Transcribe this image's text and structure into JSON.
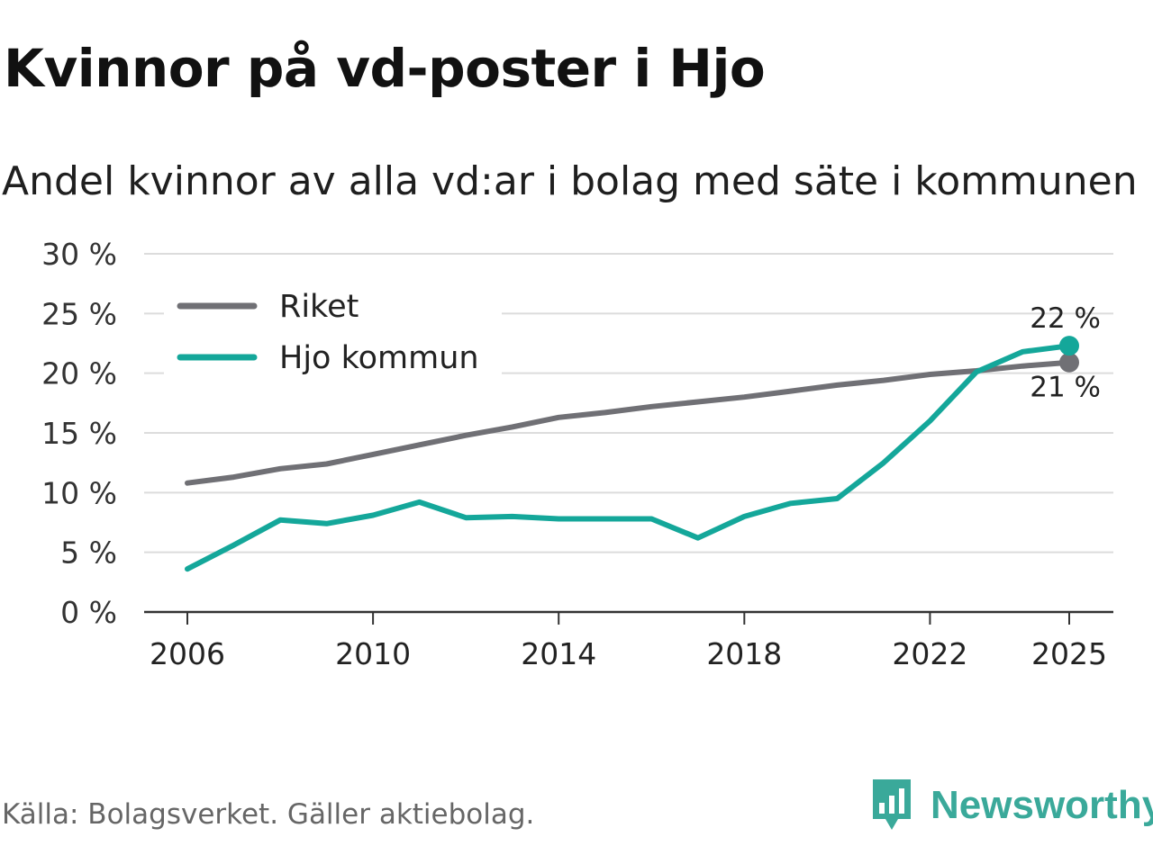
{
  "title": "Kvinnor på vd-poster i Hjo",
  "subtitle": "Andel kvinnor av alla vd:ar i bolag med säte i kommunen",
  "source": "Källa: Bolagsverket. Gäller aktiebolag.",
  "brand": "Newsworthy",
  "colors": {
    "riket": "#707075",
    "hjo": "#14a79a",
    "grid": "#dcdcdc",
    "axis": "#333333"
  },
  "chart_data": {
    "type": "line",
    "x": [
      2006,
      2007,
      2008,
      2009,
      2010,
      2011,
      2012,
      2013,
      2014,
      2015,
      2016,
      2017,
      2018,
      2019,
      2020,
      2021,
      2022,
      2023,
      2024,
      2025
    ],
    "series": [
      {
        "name": "Riket",
        "values": [
          10.8,
          11.3,
          12.0,
          12.4,
          13.2,
          14.0,
          14.8,
          15.5,
          16.3,
          16.7,
          17.2,
          17.6,
          18.0,
          18.5,
          19.0,
          19.4,
          19.9,
          20.2,
          20.6,
          20.9
        ],
        "end_label": "21 %"
      },
      {
        "name": "Hjo kommun",
        "values": [
          3.6,
          5.6,
          7.7,
          7.4,
          8.1,
          9.2,
          7.9,
          8.0,
          7.8,
          7.8,
          7.8,
          6.2,
          8.0,
          9.1,
          9.5,
          12.5,
          16.0,
          20.1,
          21.8,
          22.3
        ],
        "end_label": "22 %"
      }
    ],
    "y_ticks": [
      "0 %",
      "5 %",
      "10 %",
      "15 %",
      "20 %",
      "25 %",
      "30 %"
    ],
    "x_ticks": [
      "2006",
      "2010",
      "2014",
      "2018",
      "2022",
      "2025"
    ],
    "ylim": [
      0,
      30
    ],
    "xlabel": "",
    "ylabel": "",
    "legend": "top-left"
  }
}
